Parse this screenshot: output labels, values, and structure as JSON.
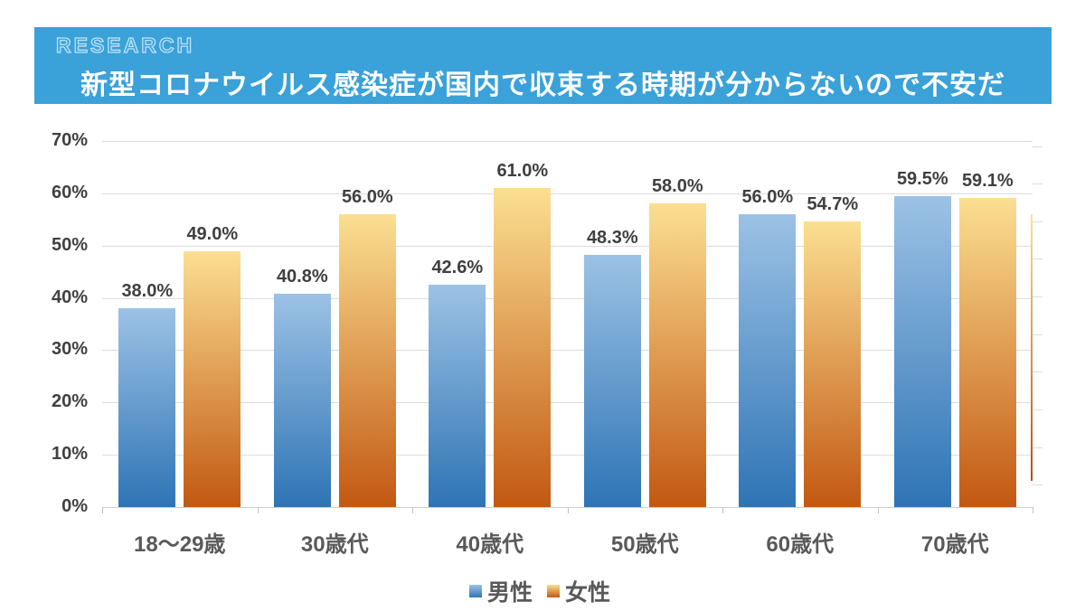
{
  "header": {
    "badge": "RESEARCH",
    "title": "新型コロナウイルス感染症が国内で収束する時期が分からないので不安だ",
    "background_color": "#3aa1d9",
    "text_color": "#ffffff"
  },
  "chart_data": {
    "type": "bar",
    "title": "新型コロナウイルス感染症が国内で収束する時期が分からないので不安だ",
    "categories": [
      "18〜29歳",
      "30歳代",
      "40歳代",
      "50歳代",
      "60歳代",
      "70歳代"
    ],
    "series": [
      {
        "name": "男性",
        "values": [
          38.0,
          40.8,
          42.6,
          48.3,
          56.0,
          59.5
        ],
        "labels": [
          "38.0%",
          "40.8%",
          "42.6%",
          "48.3%",
          "56.0%",
          "59.5%"
        ],
        "color_top": "#9cc2e5",
        "color_bottom": "#2e74b5"
      },
      {
        "name": "女性",
        "values": [
          49.0,
          56.0,
          61.0,
          58.0,
          54.7,
          59.1
        ],
        "labels": [
          "49.0%",
          "56.0%",
          "61.0%",
          "58.0%",
          "54.7%",
          "59.1%"
        ],
        "color_top": "#fbdf92",
        "color_bottom": "#c25812"
      }
    ],
    "xlabel": "",
    "ylabel": "",
    "ylim": [
      0,
      70
    ],
    "ytick_step": 10,
    "ytick_labels": [
      "0%",
      "10%",
      "20%",
      "30%",
      "40%",
      "50%",
      "60%",
      "70%"
    ],
    "grid": true,
    "legend_position": "bottom",
    "value_label_color": "#3f3f3f",
    "gridline_color": "#dcdcdc"
  }
}
